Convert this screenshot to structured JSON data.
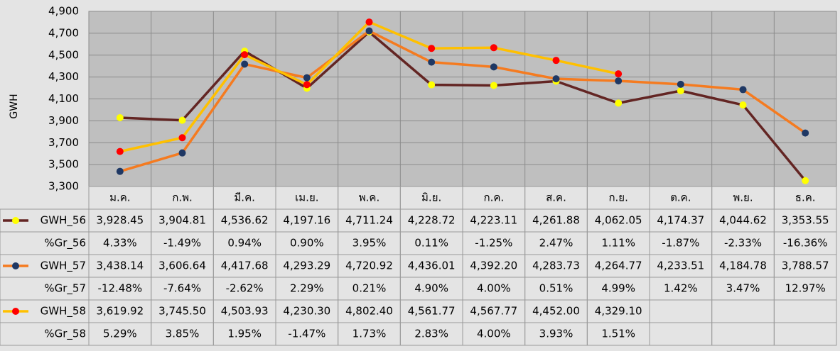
{
  "chart_data": {
    "type": "line",
    "y_axis_label": "GWH",
    "categories": [
      "ม.ค.",
      "ก.พ.",
      "มี.ค.",
      "เม.ย.",
      "พ.ค.",
      "มิ.ย.",
      "ก.ค.",
      "ส.ค.",
      "ก.ย.",
      "ต.ค.",
      "พ.ย.",
      "ธ.ค."
    ],
    "ylim": [
      3300,
      4900
    ],
    "yticks": [
      {
        "value": 3300,
        "label": "3,300"
      },
      {
        "value": 3500,
        "label": "3,500"
      },
      {
        "value": 3700,
        "label": "3,700"
      },
      {
        "value": 3900,
        "label": "3,900"
      },
      {
        "value": 4100,
        "label": "4,100"
      },
      {
        "value": 4300,
        "label": "4,300"
      },
      {
        "value": 4500,
        "label": "4,500"
      },
      {
        "value": 4700,
        "label": "4,700"
      },
      {
        "value": 4900,
        "label": "4,900"
      }
    ],
    "grid": true,
    "series": [
      {
        "name": "GWH_56",
        "color": "#632523",
        "marker_color": "#ffff00",
        "values": [
          3928.45,
          3904.81,
          4536.62,
          4197.16,
          4711.24,
          4228.72,
          4223.11,
          4261.88,
          4062.05,
          4174.37,
          4044.62,
          3353.55
        ],
        "value_labels": [
          "3,928.45",
          "3,904.81",
          "4,536.62",
          "4,197.16",
          "4,711.24",
          "4,228.72",
          "4,223.11",
          "4,261.88",
          "4,062.05",
          "4,174.37",
          "4,044.62",
          "3,353.55"
        ],
        "growth": {
          "name": "%Gr_56",
          "values": [
            4.33,
            -1.49,
            0.94,
            0.9,
            3.95,
            0.11,
            -1.25,
            2.47,
            1.11,
            -1.87,
            -2.33,
            -16.36
          ],
          "value_labels": [
            "4.33%",
            "-1.49%",
            "0.94%",
            "0.90%",
            "3.95%",
            "0.11%",
            "-1.25%",
            "2.47%",
            "1.11%",
            "-1.87%",
            "-2.33%",
            "-16.36%"
          ]
        }
      },
      {
        "name": "GWH_57",
        "color": "#f57b20",
        "marker_color": "#1f3864",
        "values": [
          3438.14,
          3606.64,
          4417.68,
          4293.29,
          4720.92,
          4436.01,
          4392.2,
          4283.73,
          4264.77,
          4233.51,
          4184.78,
          3788.57
        ],
        "value_labels": [
          "3,438.14",
          "3,606.64",
          "4,417.68",
          "4,293.29",
          "4,720.92",
          "4,436.01",
          "4,392.20",
          "4,283.73",
          "4,264.77",
          "4,233.51",
          "4,184.78",
          "3,788.57"
        ],
        "growth": {
          "name": "%Gr_57",
          "values": [
            -12.48,
            -7.64,
            -2.62,
            2.29,
            0.21,
            4.9,
            4.0,
            0.51,
            4.99,
            1.42,
            3.47,
            12.97
          ],
          "value_labels": [
            "-12.48%",
            "-7.64%",
            "-2.62%",
            "2.29%",
            "0.21%",
            "4.90%",
            "4.00%",
            "0.51%",
            "4.99%",
            "1.42%",
            "3.47%",
            "12.97%"
          ]
        }
      },
      {
        "name": "GWH_58",
        "color": "#ffc000",
        "marker_color": "#ff0000",
        "values": [
          3619.92,
          3745.5,
          4503.93,
          4230.3,
          4802.4,
          4561.77,
          4567.77,
          4452.0,
          4329.1,
          null,
          null,
          null
        ],
        "value_labels": [
          "3,619.92",
          "3,745.50",
          "4,503.93",
          "4,230.30",
          "4,802.40",
          "4,561.77",
          "4,567.77",
          "4,452.00",
          "4,329.10",
          null,
          null,
          null
        ],
        "growth": {
          "name": "%Gr_58",
          "values": [
            5.29,
            3.85,
            1.95,
            -1.47,
            1.73,
            2.83,
            4.0,
            3.93,
            1.51,
            null,
            null,
            null
          ],
          "value_labels": [
            "5.29%",
            "3.85%",
            "1.95%",
            "-1.47%",
            "1.73%",
            "2.83%",
            "4.00%",
            "3.93%",
            "1.51%",
            null,
            null,
            null
          ]
        }
      }
    ]
  }
}
